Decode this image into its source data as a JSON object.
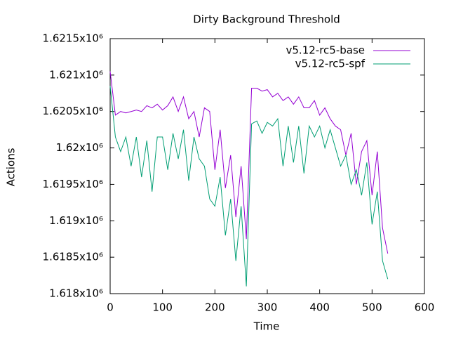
{
  "chart_data": {
    "type": "line",
    "title": "Dirty Background Threshold",
    "xlabel": "Time",
    "ylabel": "Actions",
    "x": [
      0,
      10,
      20,
      30,
      40,
      50,
      60,
      70,
      80,
      90,
      100,
      110,
      120,
      130,
      140,
      150,
      160,
      170,
      180,
      190,
      200,
      210,
      220,
      230,
      240,
      250,
      260,
      270,
      280,
      290,
      300,
      310,
      320,
      330,
      340,
      350,
      360,
      370,
      380,
      390,
      400,
      410,
      420,
      430,
      440,
      450,
      460,
      470,
      480,
      490,
      500,
      510,
      520,
      530
    ],
    "series": [
      {
        "name": "v5.12-rc5-base",
        "color": "#9400d3",
        "values": [
          1621050,
          1620450,
          1620500,
          1620480,
          1620500,
          1620520,
          1620500,
          1620580,
          1620550,
          1620600,
          1620520,
          1620580,
          1620700,
          1620500,
          1620700,
          1620400,
          1620500,
          1620150,
          1620550,
          1620500,
          1619700,
          1620250,
          1619450,
          1619900,
          1619050,
          1619750,
          1618750,
          1620820,
          1620820,
          1620780,
          1620800,
          1620700,
          1620750,
          1620650,
          1620700,
          1620600,
          1620700,
          1620550,
          1620550,
          1620650,
          1620450,
          1620550,
          1620400,
          1620300,
          1620250,
          1619900,
          1620200,
          1619500,
          1619950,
          1620100,
          1619350,
          1619950,
          1618900,
          1618550
        ]
      },
      {
        "name": "v5.12-rc5-spf",
        "color": "#009e73",
        "values": [
          1620850,
          1620150,
          1619950,
          1620150,
          1619750,
          1620150,
          1619600,
          1620100,
          1619400,
          1620150,
          1620150,
          1619700,
          1620200,
          1619850,
          1620250,
          1619550,
          1620150,
          1619850,
          1619750,
          1619300,
          1619200,
          1619600,
          1618800,
          1619300,
          1618450,
          1619200,
          1618100,
          1620330,
          1620370,
          1620200,
          1620350,
          1620300,
          1620400,
          1619750,
          1620300,
          1619800,
          1620300,
          1619650,
          1620300,
          1620150,
          1620300,
          1620000,
          1620250,
          1620000,
          1619750,
          1619900,
          1619500,
          1619700,
          1619350,
          1619800,
          1618950,
          1619400,
          1618450,
          1618200
        ]
      }
    ],
    "xlim": [
      0,
      600
    ],
    "xticks": [
      0,
      100,
      200,
      300,
      400,
      500,
      600
    ],
    "ylim": [
      1618000,
      1621500
    ],
    "yticks": [
      {
        "value": 1618000,
        "label": "1.618x10⁶"
      },
      {
        "value": 1618500,
        "label": "1.6185x10⁶"
      },
      {
        "value": 1619000,
        "label": "1.619x10⁶"
      },
      {
        "value": 1619500,
        "label": "1.6195x10⁶"
      },
      {
        "value": 1620000,
        "label": "1.62x10⁶"
      },
      {
        "value": 1620500,
        "label": "1.6205x10⁶"
      },
      {
        "value": 1621000,
        "label": "1.621x10⁶"
      },
      {
        "value": 1621500,
        "label": "1.6215x10⁶"
      }
    ],
    "legend": "upper right",
    "grid": false
  }
}
